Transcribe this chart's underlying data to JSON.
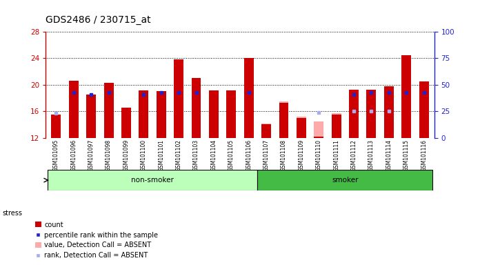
{
  "title": "GDS2486 / 230715_at",
  "samples": [
    "GSM101095",
    "GSM101096",
    "GSM101097",
    "GSM101098",
    "GSM101099",
    "GSM101100",
    "GSM101101",
    "GSM101102",
    "GSM101103",
    "GSM101104",
    "GSM101105",
    "GSM101106",
    "GSM101107",
    "GSM101108",
    "GSM101109",
    "GSM101110",
    "GSM101111",
    "GSM101112",
    "GSM101113",
    "GSM101114",
    "GSM101115",
    "GSM101116"
  ],
  "non_smoker_count": 12,
  "smoker_count": 10,
  "ylim_left": [
    12,
    28
  ],
  "ylim_right": [
    0,
    100
  ],
  "yticks_left": [
    12,
    16,
    20,
    24,
    28
  ],
  "yticks_right": [
    0,
    25,
    50,
    75,
    100
  ],
  "red_bars": [
    15.5,
    20.6,
    18.5,
    20.3,
    16.5,
    19.2,
    19.0,
    23.8,
    21.0,
    19.2,
    19.2,
    24.0,
    14.0,
    17.3,
    15.0,
    12.2,
    15.5,
    19.3,
    19.3,
    19.8,
    24.5,
    20.5
  ],
  "blue_dots_rank": [
    null,
    43,
    41,
    43,
    null,
    41,
    43,
    43,
    43,
    null,
    null,
    43,
    null,
    null,
    null,
    null,
    null,
    41,
    43,
    43,
    43,
    43
  ],
  "pink_bars": [
    15.5,
    null,
    null,
    null,
    null,
    null,
    null,
    null,
    null,
    19.0,
    15.7,
    null,
    14.2,
    17.5,
    15.2,
    14.5,
    15.7,
    null,
    null,
    null,
    null,
    null
  ],
  "light_blue_dots_val": [
    15.7,
    null,
    null,
    null,
    null,
    null,
    null,
    null,
    null,
    null,
    null,
    null,
    null,
    null,
    null,
    15.8,
    null,
    16.0,
    16.0,
    16.0,
    null,
    null
  ],
  "red_bar_color": "#cc0000",
  "blue_dot_color": "#2222cc",
  "pink_bar_color": "#ffaaaa",
  "light_blue_dot_color": "#aaaaee",
  "non_smoker_bg": "#bbffbb",
  "smoker_bg": "#44bb44",
  "axis_tick_bg": "#cccccc",
  "ylabel_left_color": "#cc0000",
  "ylabel_right_color": "#2222cc"
}
